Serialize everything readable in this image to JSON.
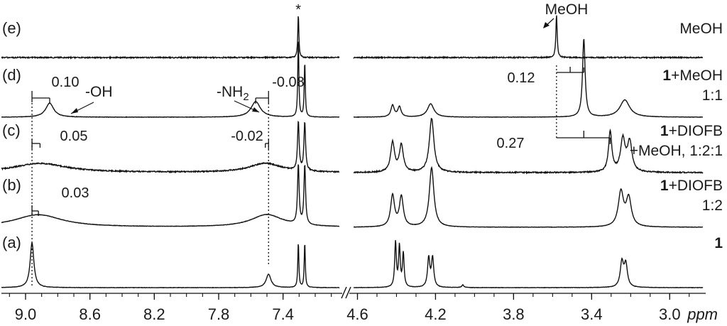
{
  "chart_data": {
    "type": "line",
    "x_unit": "ppm",
    "x_axis_left_panel": {
      "range": [
        9.15,
        7.05
      ],
      "ticks": [
        "9.0",
        "8.6",
        "8.2",
        "7.8",
        "7.4"
      ]
    },
    "x_axis_right_panel": {
      "range": [
        4.62,
        2.83
      ],
      "ticks": [
        "4.6",
        "4.2",
        "3.8",
        "3.4",
        "3.0"
      ]
    },
    "axis_break_mark": "//",
    "asterisk": "*",
    "grid": false,
    "series": [
      {
        "id": "a",
        "tag": "(a)",
        "label_bold": "1",
        "label_rest": "",
        "label_line2": "",
        "peaks": [
          {
            "x": 8.96,
            "h": 1.0,
            "w": 0.014
          },
          {
            "x": 7.49,
            "h": 0.3,
            "w": 0.018
          },
          {
            "x": 7.305,
            "h": 1.0,
            "w": 0.004
          },
          {
            "x": 7.265,
            "h": 1.0,
            "w": 0.004
          },
          {
            "x": 4.405,
            "h": 1.0,
            "w": 0.005
          },
          {
            "x": 4.385,
            "h": 0.9,
            "w": 0.005
          },
          {
            "x": 4.365,
            "h": 0.75,
            "w": 0.005
          },
          {
            "x": 4.235,
            "h": 0.65,
            "w": 0.007
          },
          {
            "x": 4.215,
            "h": 0.65,
            "w": 0.007
          },
          {
            "x": 4.06,
            "h": 0.06,
            "w": 0.006
          },
          {
            "x": 3.245,
            "h": 0.55,
            "w": 0.01
          },
          {
            "x": 3.225,
            "h": 0.5,
            "w": 0.01
          }
        ]
      },
      {
        "id": "b",
        "tag": "(b)",
        "label_bold": "1",
        "label_rest": "+DIOFB",
        "label_line2": "1:2",
        "peaks": [
          {
            "x": 8.92,
            "h": 0.2,
            "w": 0.18
          },
          {
            "x": 7.5,
            "h": 0.2,
            "w": 0.12
          },
          {
            "x": 7.305,
            "h": 0.95,
            "w": 0.006
          },
          {
            "x": 7.265,
            "h": 0.95,
            "w": 0.006
          },
          {
            "x": 4.42,
            "h": 0.5,
            "w": 0.012
          },
          {
            "x": 4.375,
            "h": 0.48,
            "w": 0.012
          },
          {
            "x": 4.22,
            "h": 0.95,
            "w": 0.014
          },
          {
            "x": 3.25,
            "h": 0.55,
            "w": 0.016
          },
          {
            "x": 3.21,
            "h": 0.45,
            "w": 0.016
          }
        ]
      },
      {
        "id": "c",
        "tag": "(c)",
        "label_bold": "1",
        "label_rest": "+DIOFB",
        "label_line2": "+MeOH, 1:2:1",
        "peaks": [
          {
            "x": 8.91,
            "h": 0.17,
            "w": 0.2
          },
          {
            "x": 7.51,
            "h": 0.17,
            "w": 0.12
          },
          {
            "x": 7.305,
            "h": 0.9,
            "w": 0.006
          },
          {
            "x": 7.265,
            "h": 0.9,
            "w": 0.006
          },
          {
            "x": 4.42,
            "h": 0.55,
            "w": 0.012
          },
          {
            "x": 4.375,
            "h": 0.5,
            "w": 0.012
          },
          {
            "x": 4.22,
            "h": 1.0,
            "w": 0.014
          },
          {
            "x": 3.305,
            "h": 0.75,
            "w": 0.01
          },
          {
            "x": 3.24,
            "h": 0.6,
            "w": 0.014
          },
          {
            "x": 3.205,
            "h": 0.55,
            "w": 0.014
          }
        ]
      },
      {
        "id": "d",
        "tag": "(d)",
        "label_bold": "1",
        "label_rest": "+MeOH",
        "label_line2": "1:1",
        "peaks": [
          {
            "x": 8.85,
            "h": 0.18,
            "w": 0.03
          },
          {
            "x": 7.57,
            "h": 0.2,
            "w": 0.035
          },
          {
            "x": 7.305,
            "h": 1.0,
            "w": 0.004
          },
          {
            "x": 7.265,
            "h": 0.7,
            "w": 0.004
          },
          {
            "x": 4.42,
            "h": 0.15,
            "w": 0.01
          },
          {
            "x": 4.385,
            "h": 0.13,
            "w": 0.01
          },
          {
            "x": 4.225,
            "h": 0.17,
            "w": 0.02
          },
          {
            "x": 3.44,
            "h": 1.0,
            "w": 0.008
          },
          {
            "x": 3.23,
            "h": 0.22,
            "w": 0.03
          }
        ]
      },
      {
        "id": "e",
        "tag": "(e)",
        "label_bold": "",
        "label_rest": "MeOH",
        "label_line2": "",
        "peaks": [
          {
            "x": 7.305,
            "h": 1.0,
            "w": 0.004
          },
          {
            "x": 3.58,
            "h": 1.0,
            "w": 0.004
          }
        ]
      }
    ],
    "annotations": {
      "oh_label": "-OH",
      "nh2_label": "-NH",
      "nh2_subscript": "2",
      "shifts": {
        "d_oh": "0.10",
        "d_nh": "-0.08",
        "d_meoh": "0.12",
        "c_oh": "0.05",
        "c_nh": "-0.02",
        "c_meoh": "0.27",
        "b_oh": "0.03"
      },
      "meoh_top_label": "MeOH"
    }
  }
}
